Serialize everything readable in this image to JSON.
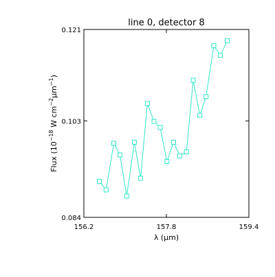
{
  "chart_data": {
    "type": "line",
    "title": "line 0, detector 8",
    "xlabel": "λ (μm)",
    "ylabel": {
      "prefix": "Flux (10",
      "sup1": "−18",
      "mid": " W cm",
      "sup2": "−2",
      "mu": "μm",
      "sup3": "−1",
      "suffix": ")"
    },
    "xlim": [
      156.2,
      159.4
    ],
    "ylim": [
      0.084,
      0.121
    ],
    "xticks": [
      "156.2",
      "157.8",
      "159.4"
    ],
    "yticks": [
      "0.084",
      "0.103",
      "0.121"
    ],
    "xtick_values": [
      156.2,
      157.8,
      159.4
    ],
    "ytick_values": [
      0.084,
      0.103,
      0.121
    ],
    "grid": false,
    "marker": "square",
    "color": "#2ee6c8",
    "series": [
      {
        "x": [
          156.5,
          156.63,
          156.78,
          156.9,
          157.03,
          157.18,
          157.3,
          157.43,
          157.56,
          157.68,
          157.81,
          157.94,
          158.06,
          158.19,
          158.32,
          158.45,
          158.57,
          158.72,
          158.85,
          158.98
        ],
        "values": [
          0.0911,
          0.0894,
          0.0986,
          0.0963,
          0.0882,
          0.0988,
          0.0917,
          0.1064,
          0.1029,
          0.1017,
          0.095,
          0.0988,
          0.0961,
          0.0969,
          0.111,
          0.1041,
          0.1078,
          0.1178,
          0.1159,
          0.1188
        ]
      }
    ]
  }
}
